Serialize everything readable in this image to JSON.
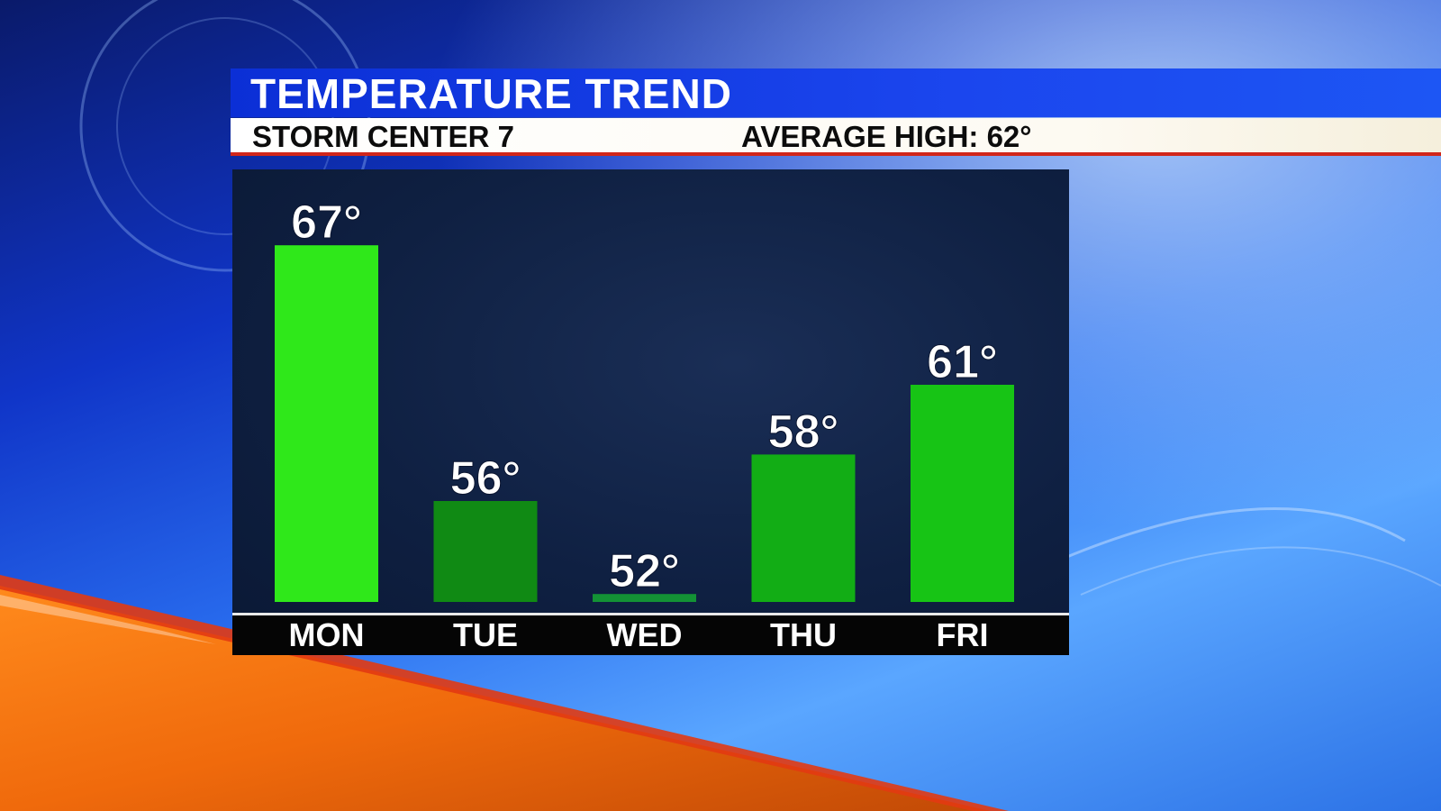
{
  "header": {
    "title": "TEMPERATURE TREND",
    "station": "STORM CENTER 7",
    "average_high": "AVERAGE HIGH: 62°"
  },
  "colors": {
    "title_bar": "#1b46ee",
    "accent_red": "#d1261a",
    "bar_colors": [
      "#2fe81a",
      "#108a14",
      "#139235",
      "#12ad15",
      "#17c415"
    ]
  },
  "chart_data": {
    "type": "bar",
    "title": "TEMPERATURE TREND",
    "categories": [
      "MON",
      "TUE",
      "WED",
      "THU",
      "FRI"
    ],
    "values": [
      67,
      56,
      52,
      58,
      61
    ],
    "value_labels": [
      "67°",
      "56°",
      "52°",
      "58°",
      "61°"
    ],
    "unit": "°",
    "xlabel": "",
    "ylabel": "",
    "grid": false,
    "legend": "none"
  }
}
